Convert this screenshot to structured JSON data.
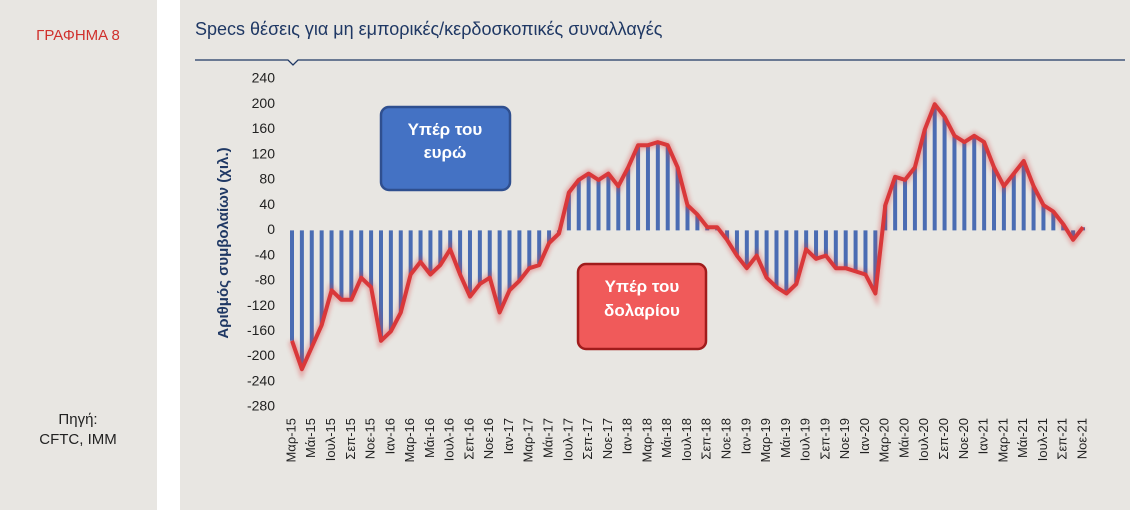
{
  "chart_label": "ΓΡΑΦΗΜΑ 8",
  "source": [
    "Πηγή:",
    "CFTC, IMM"
  ],
  "chart_data": {
    "type": "bar_line",
    "title": "Specs θέσεις για μη εμπορικές/κερδοσκοπικές συναλλαγές",
    "y_label": "Αριθμός συμβολαίων (χιλ.)",
    "annotations": [
      {
        "lines": [
          "Υπέρ του",
          "ευρώ"
        ],
        "color": "#4472c4"
      },
      {
        "lines": [
          "Υπέρ του",
          "δολαρίου"
        ],
        "color": "#f05a5a"
      }
    ],
    "categories": [
      "Μαρ-15",
      null,
      "Μάι-15",
      null,
      "Ιουλ-15",
      null,
      "Σεπ-15",
      null,
      "Νοε-15",
      null,
      "Ιαν-16",
      null,
      "Μαρ-16",
      null,
      "Μάι-16",
      null,
      "Ιουλ-16",
      null,
      "Σεπ-16",
      null,
      "Νοε-16",
      null,
      "Ιαν-17",
      null,
      "Μαρ-17",
      null,
      "Μάι-17",
      null,
      "Ιουλ-17",
      null,
      "Σεπ-17",
      null,
      "Νοε-17",
      null,
      "Ιαν-18",
      null,
      "Μαρ-18",
      null,
      "Μάι-18",
      null,
      "Ιουλ-18",
      null,
      "Σεπ-18",
      null,
      "Νοε-18",
      null,
      "Ιαν-19",
      null,
      "Μαρ-19",
      null,
      "Μάι-19",
      null,
      "Ιουλ-19",
      null,
      "Σεπ-19",
      null,
      "Νοε-19",
      null,
      "Ιαν-20",
      null,
      "Μαρ-20",
      null,
      "Μάι-20",
      null,
      "Ιουλ-20",
      null,
      "Σεπ-20",
      null,
      "Νοε-20",
      null,
      "Ιαν-21",
      null,
      "Μαρ-21",
      null,
      "Μάι-21",
      null,
      "Ιουλ-21",
      null,
      "Σεπ-21",
      null,
      "Νοε-21"
    ],
    "values": [
      -175,
      -220,
      -185,
      -150,
      -95,
      -110,
      -110,
      -75,
      -90,
      -175,
      -160,
      -130,
      -70,
      -50,
      -70,
      -55,
      -30,
      -70,
      -105,
      -85,
      -75,
      -130,
      -95,
      -80,
      -60,
      -55,
      -20,
      -5,
      60,
      80,
      90,
      80,
      90,
      70,
      100,
      135,
      135,
      140,
      135,
      100,
      40,
      25,
      5,
      5,
      -15,
      -40,
      -60,
      -40,
      -75,
      -90,
      -100,
      -85,
      -30,
      -45,
      -40,
      -60,
      -60,
      -65,
      -70,
      -100,
      40,
      85,
      80,
      100,
      160,
      200,
      180,
      150,
      140,
      150,
      140,
      100,
      70,
      90,
      110,
      70,
      40,
      30,
      10,
      -15,
      5
    ],
    "bar_color": "#4a6cb3",
    "line_color": "#d9383a",
    "ylim": [
      -280,
      240
    ],
    "yticks": [
      -280,
      -240,
      -200,
      -160,
      -120,
      -80,
      -40,
      0,
      40,
      80,
      120,
      160,
      200,
      240
    ]
  }
}
